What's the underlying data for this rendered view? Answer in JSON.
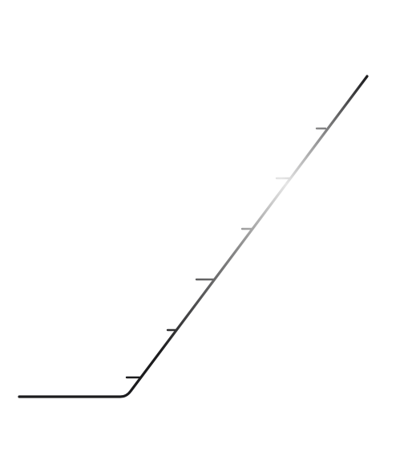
{
  "graphic": {
    "kind": "stroke-with-tick-marks",
    "segments": [
      "horizontal",
      "rounded-corner",
      "diagonal-rising"
    ],
    "tick_count": 6,
    "tick_side": "left",
    "colors": {
      "background": "#ffffff",
      "stroke_dark": "#1c1c1e",
      "stroke_mid": "#8a8a8a",
      "stroke_light": "#e6e6e6"
    }
  }
}
